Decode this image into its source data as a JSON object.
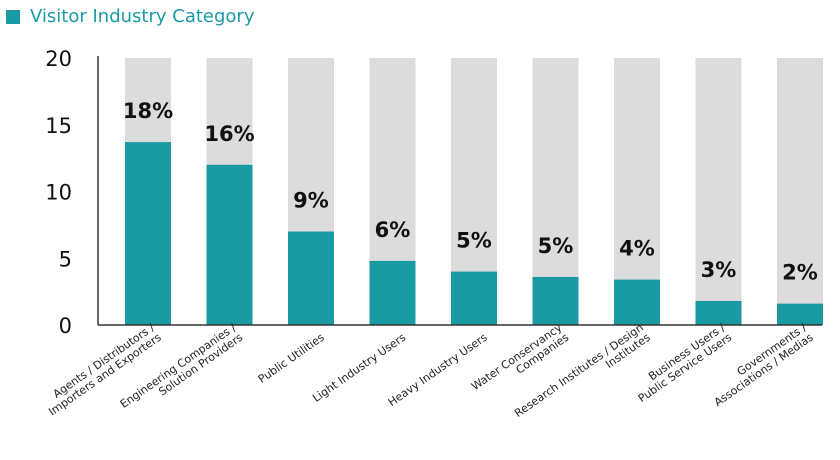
{
  "colors": {
    "accent": "#1a9ba4",
    "track": "#dcdcdc",
    "axis": "#333333"
  },
  "chart_data": {
    "type": "bar",
    "title": "Visitor Industry Category",
    "xlabel": "",
    "ylabel": "",
    "ylim": [
      0,
      20
    ],
    "yticks": [
      0,
      5,
      10,
      15,
      20
    ],
    "grid": false,
    "legend": "top-left",
    "categories": [
      [
        "Agents / Distributors /",
        "Importers and Exporters"
      ],
      [
        "Engineering Companies /",
        "Solution Providers"
      ],
      [
        "Public Utilities"
      ],
      [
        "Light Industry Users"
      ],
      [
        "Heavy Industry Users"
      ],
      [
        "Water Conservancy",
        "Companies"
      ],
      [
        "Research Institutes / Design",
        "Institutes"
      ],
      [
        "Business Users /",
        "Public Service Users"
      ],
      [
        "Governments /",
        "Associations / Medias"
      ]
    ],
    "values": [
      13.7,
      12.0,
      7.0,
      4.8,
      4.0,
      3.6,
      3.4,
      1.8,
      1.6
    ],
    "data_labels": [
      "18%",
      "16%",
      "9%",
      "6%",
      "5%",
      "5%",
      "4%",
      "3%",
      "2%"
    ]
  }
}
